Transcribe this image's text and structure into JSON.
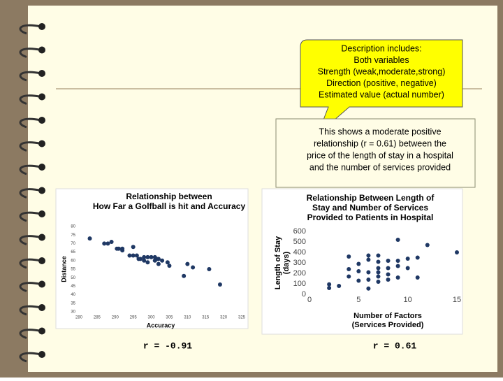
{
  "callout": {
    "lines": [
      "Description includes:",
      "Both variables",
      "Strength (weak,moderate,strong)",
      "Direction (positive, negative)",
      "Estimated value (actual number)"
    ]
  },
  "note": {
    "lines": [
      "This shows a moderate positive",
      "relationship (r = 0.61) between the",
      "price of the length of stay in a hospital",
      "and the number of services provided"
    ]
  },
  "captions": [
    "r = -0.91",
    "r = 0.61"
  ],
  "chart_data": [
    {
      "type": "scatter",
      "title": [
        "Relationship between",
        "How Far a Golfball is hit and Accuracy"
      ],
      "x_label": [
        "Accuracy"
      ],
      "y_label": [
        "Distance"
      ],
      "x": [
        283,
        287,
        288,
        289,
        290.5,
        291,
        292,
        292,
        294,
        295,
        295,
        296,
        296.5,
        297,
        298,
        298,
        299,
        299,
        300,
        301,
        301,
        301.5,
        302,
        302,
        303,
        304.5,
        305,
        309,
        310,
        311.5,
        316,
        319
      ],
      "values": [
        73,
        70,
        70,
        71,
        67,
        67,
        66,
        67,
        63,
        68,
        63,
        63,
        61,
        61,
        62,
        60,
        62,
        59,
        62,
        62,
        60,
        61,
        58,
        61,
        60,
        59,
        57,
        51,
        58,
        56,
        55,
        46
      ],
      "xlim": [
        280,
        325
      ],
      "xticks": [
        280,
        285,
        290,
        295,
        300,
        305,
        310,
        315,
        320,
        325
      ],
      "ylim": [
        30,
        80
      ],
      "yticks": [
        30,
        35,
        40,
        45,
        50,
        55,
        60,
        65,
        70,
        75,
        80
      ],
      "color": "#1f3864",
      "grid": false
    },
    {
      "type": "scatter",
      "title": [
        "Relationship Between Length of",
        "Stay and Number of Services",
        "Provided to Patients in Hospital"
      ],
      "x_label": [
        "Number of Factors",
        "(Services Provided)"
      ],
      "y_label": [
        "Length of Stay",
        "(days)"
      ],
      "x": [
        2,
        2,
        3,
        4,
        4,
        4,
        5,
        5,
        5,
        6,
        6,
        6,
        6,
        6,
        7,
        7,
        7,
        7,
        7,
        7,
        8,
        8,
        8,
        8,
        9,
        9,
        9,
        9,
        10,
        10,
        11,
        11,
        12,
        15
      ],
      "values": [
        95,
        60,
        80,
        360,
        240,
        170,
        220,
        130,
        290,
        370,
        330,
        210,
        140,
        55,
        310,
        250,
        210,
        170,
        120,
        370,
        320,
        250,
        190,
        140,
        520,
        320,
        270,
        160,
        340,
        250,
        350,
        160,
        470,
        400
      ],
      "xlim": [
        0,
        15
      ],
      "xticks": [
        0,
        5,
        10,
        15
      ],
      "ylim": [
        0,
        600
      ],
      "yticks": [
        0,
        100,
        200,
        300,
        400,
        500,
        600
      ],
      "color": "#1f3864",
      "grid": false
    }
  ]
}
